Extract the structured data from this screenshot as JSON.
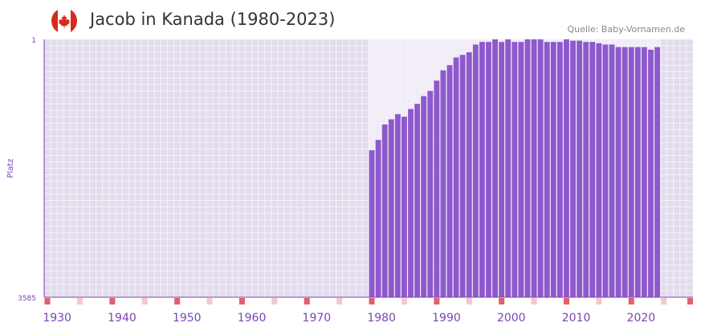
{
  "header": {
    "title": "Jacob in Kanada (1980-2023)",
    "source": "Quelle: Baby-Vornamen.de",
    "flag_icon": "canada-flag-icon"
  },
  "colors": {
    "bar": "#8e59cc",
    "plot_bg": "#e2dcec",
    "highlight_bg": "#f1ecf7",
    "grid": "#f5f2fa",
    "axis_text": "#7a45b8",
    "tick_red": "#e06070",
    "tick_pink": "#f5c8d0",
    "flag_red": "#d52b1e"
  },
  "chart_data": {
    "type": "bar",
    "title": "Jacob in Kanada (1980-2023)",
    "ylabel": "Platz",
    "y_axis": {
      "top_label": "1",
      "bottom_label": "3585",
      "inverted": true
    },
    "x_ticks": [
      "1930",
      "1940",
      "1950",
      "1960",
      "1970",
      "1980",
      "1990",
      "2000",
      "2010",
      "2020"
    ],
    "xlim": [
      1928,
      2028
    ],
    "highlight_range": [
      1978,
      2022
    ],
    "bar_metric": "height_fraction_of_axis",
    "years": [
      1978,
      1979,
      1980,
      1981,
      1982,
      1983,
      1984,
      1985,
      1986,
      1987,
      1988,
      1989,
      1990,
      1991,
      1992,
      1993,
      1994,
      1995,
      1996,
      1997,
      1998,
      1999,
      2000,
      2001,
      2002,
      2003,
      2004,
      2005,
      2006,
      2007,
      2008,
      2009,
      2010,
      2011,
      2012,
      2013,
      2014,
      2015,
      2016,
      2017,
      2018,
      2019,
      2020,
      2021,
      2022
    ],
    "values": [
      0.57,
      0.61,
      0.67,
      0.69,
      0.71,
      0.7,
      0.73,
      0.75,
      0.78,
      0.8,
      0.84,
      0.88,
      0.9,
      0.93,
      0.94,
      0.95,
      0.98,
      0.99,
      0.99,
      1.0,
      0.99,
      1.0,
      0.99,
      0.99,
      1.0,
      1.0,
      1.0,
      0.99,
      0.99,
      0.99,
      1.0,
      0.995,
      0.995,
      0.99,
      0.99,
      0.985,
      0.98,
      0.98,
      0.97,
      0.97,
      0.97,
      0.97,
      0.97,
      0.96,
      0.97
    ]
  }
}
